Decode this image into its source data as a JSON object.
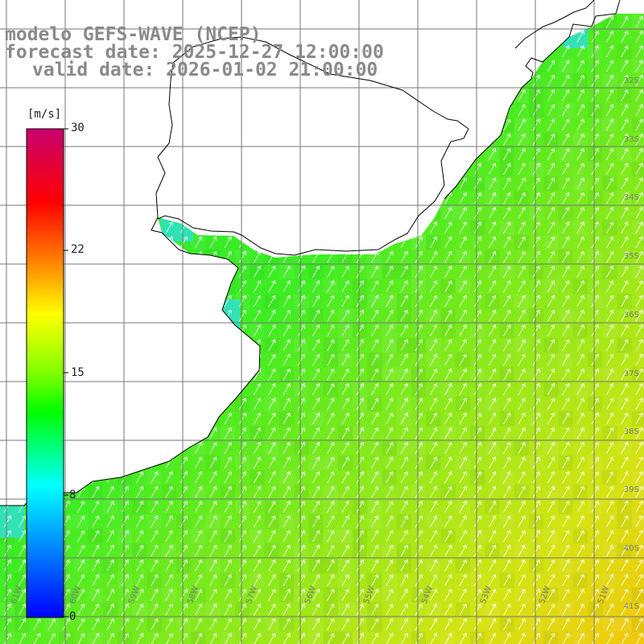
{
  "titles": {
    "line1": "modelo GEFS-WAVE (NCEP)",
    "line2": "forecast date: 2025-12-27 12:00:00",
    "line3": "valid date: 2026-01-02 21:00:00"
  },
  "colorbar": {
    "unit": "[m/s]",
    "ticks": [
      "30",
      "22",
      "15",
      "8",
      "0"
    ],
    "colors": [
      "#0000ff",
      "#00ffff",
      "#00ff00",
      "#ffff00",
      "#ff8000",
      "#ff0000",
      "#c8006e"
    ]
  },
  "lat_labels": [
    "32S",
    "33S",
    "34S",
    "35S",
    "36S",
    "37S",
    "38S",
    "39S",
    "40S",
    "41S"
  ],
  "lon_labels": [
    "61W",
    "60W",
    "59W",
    "58W",
    "57W",
    "56W",
    "55W",
    "54W",
    "53W",
    "52W",
    "51W"
  ],
  "colors": {
    "land": "#ffffff",
    "grid": "#777777",
    "coast": "#000000",
    "title": "#8a8a8a",
    "arrow": "#ffffff"
  }
}
